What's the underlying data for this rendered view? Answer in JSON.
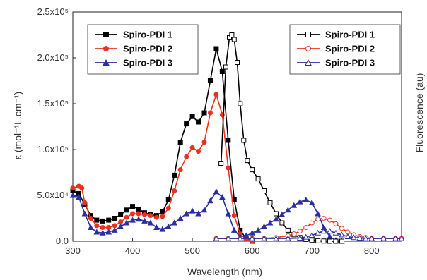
{
  "chart_data": {
    "type": "line",
    "xlabel": "Wavelength (nm)",
    "ylabel_left": "ε (mol⁻¹L.cm⁻¹)",
    "ylabel_right": "Fluorescence (au)",
    "xlim": [
      300,
      850
    ],
    "ylim": [
      0,
      250000
    ],
    "xticks": [
      300,
      400,
      500,
      600,
      700,
      800
    ],
    "yticks": [
      {
        "v": 0,
        "label": "0.0"
      },
      {
        "v": 50000,
        "label": "5.0x10⁴"
      },
      {
        "v": 100000,
        "label": "1.0x10⁵"
      },
      {
        "v": 150000,
        "label": "1.5x10⁵"
      },
      {
        "v": 200000,
        "label": "2.0x10⁵"
      },
      {
        "v": 250000,
        "label": "2.5x10⁵"
      }
    ],
    "legend_absorption": {
      "placement": "top-left",
      "entries": [
        "Spiro-PDI 1",
        "Spiro-PDI 2",
        "Spiro-PDI 3"
      ]
    },
    "legend_fluorescence": {
      "placement": "top-right",
      "entries": [
        "Spiro-PDI 1",
        "Spiro-PDI 2",
        "Spiro-PDI 3"
      ]
    },
    "series": [
      {
        "name": "Spiro-PDI 1",
        "kind": "absorption",
        "color": "#000000",
        "marker": "square-filled",
        "x": [
          300,
          310,
          320,
          330,
          340,
          350,
          360,
          370,
          380,
          390,
          400,
          410,
          420,
          430,
          440,
          450,
          460,
          470,
          480,
          490,
          500,
          510,
          520,
          530,
          540,
          550,
          560,
          570,
          580,
          590,
          600
        ],
        "y": [
          55000,
          52000,
          40000,
          28000,
          23000,
          22000,
          23000,
          25000,
          29000,
          34000,
          38000,
          35000,
          31000,
          29000,
          28000,
          32000,
          45000,
          72000,
          108000,
          128000,
          136000,
          130000,
          140000,
          175000,
          210000,
          185000,
          110000,
          45000,
          12000,
          3000,
          0
        ]
      },
      {
        "name": "Spiro-PDI 2",
        "kind": "absorption",
        "color": "#e8321f",
        "marker": "circle-filled",
        "x": [
          300,
          310,
          315,
          320,
          330,
          340,
          350,
          360,
          370,
          380,
          390,
          400,
          410,
          420,
          430,
          440,
          450,
          460,
          470,
          480,
          490,
          500,
          510,
          520,
          530,
          540,
          550,
          560,
          570,
          580,
          590,
          600
        ],
        "y": [
          58000,
          60000,
          58000,
          42000,
          25000,
          17000,
          15000,
          15000,
          17000,
          21000,
          26000,
          30000,
          30000,
          29000,
          28000,
          26000,
          27000,
          36000,
          55000,
          78000,
          92000,
          102000,
          98000,
          108000,
          140000,
          160000,
          138000,
          80000,
          28000,
          8000,
          2000,
          0
        ]
      },
      {
        "name": "Spiro-PDI 3",
        "kind": "absorption",
        "color": "#2b2fa0",
        "marker": "triangle-filled",
        "x": [
          300,
          310,
          320,
          330,
          340,
          350,
          360,
          370,
          380,
          390,
          400,
          410,
          420,
          430,
          440,
          450,
          460,
          470,
          480,
          490,
          500,
          510,
          520,
          530,
          540,
          550,
          560,
          570,
          580,
          590,
          600,
          610,
          620,
          630,
          640,
          650,
          660,
          670,
          680,
          690,
          700,
          710,
          720,
          730,
          740,
          750
        ],
        "y": [
          50000,
          48000,
          30000,
          15000,
          10000,
          9000,
          10000,
          12000,
          16000,
          20000,
          23000,
          24000,
          22000,
          20000,
          15000,
          13000,
          16000,
          20000,
          25000,
          30000,
          33000,
          30000,
          34000,
          44000,
          54000,
          48000,
          30000,
          12000,
          5000,
          6000,
          9000,
          12000,
          16000,
          20000,
          24000,
          29000,
          34000,
          39000,
          43000,
          45000,
          42000,
          30000,
          15000,
          5000,
          1000,
          0
        ]
      },
      {
        "name": "Spiro-PDI 1",
        "kind": "fluorescence",
        "color": "#000000",
        "marker": "square-open",
        "x": [
          548,
          556,
          562,
          566,
          570,
          575,
          580,
          586,
          592,
          600,
          610,
          620,
          630,
          640,
          650,
          660,
          670,
          680,
          690,
          700,
          710,
          720,
          730,
          740,
          750
        ],
        "y": [
          85000,
          190000,
          222000,
          225000,
          220000,
          195000,
          150000,
          110000,
          88000,
          78000,
          68000,
          55000,
          42000,
          30000,
          20000,
          12000,
          7000,
          4000,
          2000,
          1000,
          500,
          200,
          0,
          0,
          0
        ]
      },
      {
        "name": "Spiro-PDI 2",
        "kind": "fluorescence",
        "color": "#e8321f",
        "marker": "circle-open",
        "x": [
          540,
          560,
          580,
          600,
          620,
          640,
          660,
          670,
          680,
          690,
          700,
          710,
          720,
          730,
          740,
          750,
          760,
          770,
          780,
          790,
          800,
          820,
          840,
          850
        ],
        "y": [
          3000,
          3000,
          3000,
          3000,
          3000,
          4000,
          6000,
          8000,
          11000,
          15000,
          20000,
          24000,
          25000,
          23000,
          19000,
          14000,
          10000,
          7000,
          5000,
          4000,
          3000,
          3000,
          3000,
          3000
        ]
      },
      {
        "name": "Spiro-PDI 3",
        "kind": "fluorescence",
        "color": "#2b2fa0",
        "marker": "triangle-open",
        "x": [
          540,
          560,
          580,
          600,
          620,
          640,
          660,
          680,
          690,
          700,
          710,
          720,
          730,
          740,
          750,
          760,
          770,
          780,
          790,
          800,
          820,
          840,
          850
        ],
        "y": [
          3000,
          3000,
          3000,
          3000,
          3000,
          3000,
          3000,
          3500,
          4500,
          6500,
          9000,
          11000,
          11000,
          9000,
          7000,
          5000,
          4000,
          3500,
          3000,
          3000,
          3000,
          3000,
          3000
        ]
      }
    ]
  }
}
